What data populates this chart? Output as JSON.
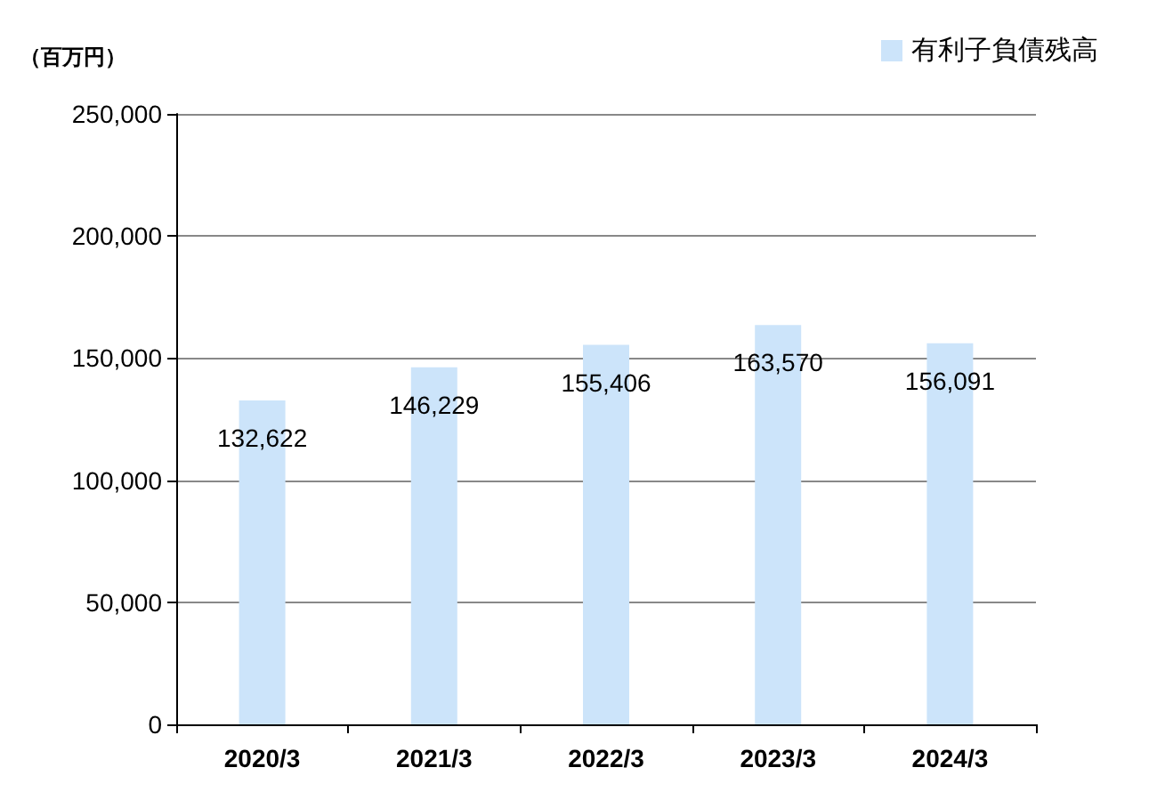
{
  "chart_data": {
    "type": "bar",
    "ylabel": "（百万円）",
    "categories": [
      "2020/3",
      "2021/3",
      "2022/3",
      "2023/3",
      "2024/3"
    ],
    "series": [
      {
        "name": "有利子負債残高",
        "color": "#cce4fa",
        "values": [
          132622,
          146229,
          155406,
          163570,
          156091
        ],
        "value_labels": [
          "132,622",
          "146,229",
          "155,406",
          "163,570",
          "156,091"
        ]
      }
    ],
    "ylim": [
      0,
      250000
    ],
    "yticks": [
      0,
      {
        "value": 50000,
        "label": "50,000"
      },
      {
        "value": 100000,
        "label": "100,000"
      },
      {
        "value": 150000,
        "label": "150,000"
      },
      {
        "value": 200000,
        "label": "200,000"
      },
      {
        "value": 250000,
        "label": "250,000"
      }
    ],
    "grid": "y",
    "legend": "top right"
  }
}
